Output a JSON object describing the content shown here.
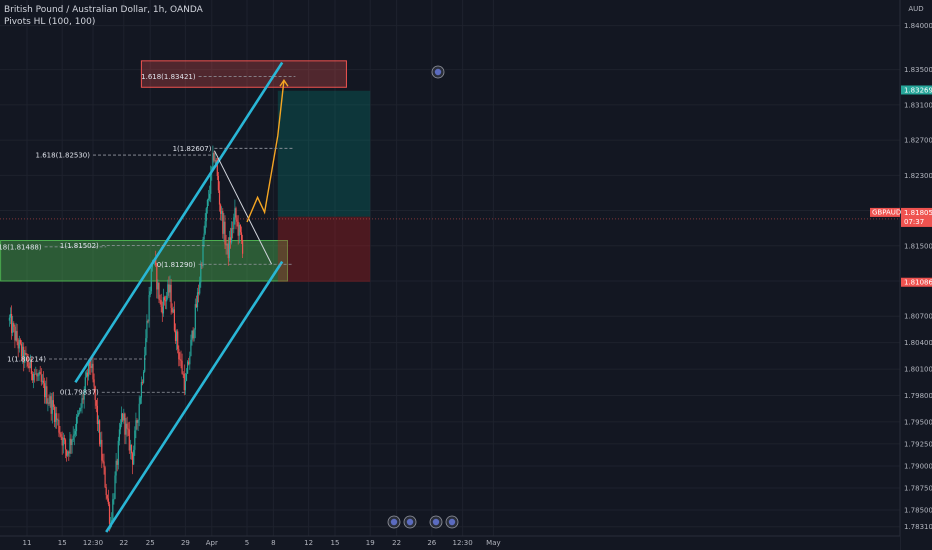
{
  "header": {
    "title": "British Pound / Australian Dollar, 1h, OANDA",
    "indicator": "Pivots HL (100, 100)",
    "currency": "AUD"
  },
  "colors": {
    "background": "#131722",
    "grid": "#1e222d",
    "up_candle": "#26a69a",
    "down_candle": "#ef5350",
    "channel": "#29b6d6",
    "fib_line": "#9598a1",
    "projection": "#f5a623",
    "demand_zone": "#4caf50",
    "supply_zone": "#ef5350",
    "target_zone": "#00897b",
    "stop_zone": "#b71c1c"
  },
  "chart_data": {
    "type": "candlestick",
    "title": "British Pound / Australian Dollar, 1h, OANDA",
    "symbol": "GBPAUD",
    "timeframe": "1h",
    "y_axis": {
      "ylim": [
        1.7825,
        1.842
      ],
      "ticks": [
        "1.84000",
        "1.83500",
        "1.83100",
        "1.82700",
        "1.82300",
        "1.81900",
        "1.81500",
        "1.81100",
        "1.80700",
        "1.80400",
        "1.80100",
        "1.79800",
        "1.79500",
        "1.79250",
        "1.79000",
        "1.78750",
        "1.78500",
        "1.78310"
      ],
      "tick_values": [
        1.84,
        1.835,
        1.831,
        1.827,
        1.823,
        1.819,
        1.815,
        1.811,
        1.807,
        1.804,
        1.801,
        1.798,
        1.795,
        1.7925,
        1.79,
        1.7875,
        1.785,
        1.7831
      ]
    },
    "x_axis": {
      "ticks": [
        "11",
        "15",
        "12:30",
        "22",
        "25",
        "29",
        "Apr",
        "5",
        "8",
        "12",
        "15",
        "19",
        "22",
        "26",
        "12:30",
        "May"
      ],
      "tick_days": [
        11,
        15,
        18.5,
        22,
        25,
        29,
        32,
        36,
        39,
        43,
        46,
        50,
        53,
        57,
        60.5,
        64
      ]
    },
    "price_labels": [
      {
        "text": "1.83269",
        "value": 1.83269,
        "color": "#26a69a"
      },
      {
        "text": "1.81830",
        "value": 1.8183,
        "color": "#434651"
      },
      {
        "text": "GBPAUD",
        "value": 1.81805,
        "color": "#ef5350"
      },
      {
        "text": "1.81805",
        "value": 1.81805,
        "color": "#ef5350"
      },
      {
        "text": "07:37",
        "value": 1.81805,
        "color": "#ef5350"
      },
      {
        "text": "1.81086",
        "value": 1.81086,
        "color": "#ef5350"
      }
    ],
    "candles": {
      "start_day": 9.0,
      "end_day": 35.5,
      "anchors": [
        [
          9.0,
          1.8065
        ],
        [
          10.5,
          1.8025
        ],
        [
          12.5,
          1.7995
        ],
        [
          14.0,
          1.7965
        ],
        [
          15.5,
          1.7915
        ],
        [
          17.0,
          1.796
        ],
        [
          18.2,
          1.802
        ],
        [
          19.5,
          1.791
        ],
        [
          20.5,
          1.7835
        ],
        [
          21.8,
          1.796
        ],
        [
          23.0,
          1.791
        ],
        [
          24.2,
          1.801
        ],
        [
          25.3,
          1.814
        ],
        [
          26.2,
          1.808
        ],
        [
          27.2,
          1.81
        ],
        [
          28.2,
          1.803
        ],
        [
          29.0,
          1.799
        ],
        [
          29.8,
          1.805
        ],
        [
          30.5,
          1.81
        ],
        [
          31.3,
          1.818
        ],
        [
          32.3,
          1.8258
        ],
        [
          33.0,
          1.819
        ],
        [
          33.8,
          1.814
        ],
        [
          34.6,
          1.8185
        ],
        [
          35.5,
          1.815
        ]
      ]
    },
    "channel_lines": [
      {
        "name": "upper",
        "points": [
          [
            16.5,
            1.7995
          ],
          [
            40.0,
            1.8358
          ]
        ]
      },
      {
        "name": "lower",
        "points": [
          [
            20.0,
            1.7825
          ],
          [
            40.0,
            1.8132
          ]
        ]
      }
    ],
    "projection_path": [
      [
        36.0,
        1.8177
      ],
      [
        37.2,
        1.8205
      ],
      [
        38.0,
        1.8188
      ],
      [
        39.5,
        1.8275
      ],
      [
        40.2,
        1.8338
      ]
    ],
    "diagonal_line": [
      [
        32.3,
        1.8258
      ],
      [
        38.8,
        1.8129
      ]
    ],
    "fibonacci_levels": [
      {
        "label": "1.618(1.83421)",
        "value": 1.83421,
        "x_start": 30.5,
        "x_end": 41.5
      },
      {
        "label": "1(1.82607)",
        "value": 1.82607,
        "x_start": 32.3,
        "x_end": 41.2
      },
      {
        "label": "1.618(1.82530)",
        "value": 1.8253,
        "x_start": 18.5,
        "x_end": 32.0
      },
      {
        "label": "1.618(1.81488)",
        "value": 1.81488,
        "x_start": 13.0,
        "x_end": 20.0
      },
      {
        "label": "1(1.81502)",
        "value": 1.81502,
        "x_start": 19.5,
        "x_end": 32.0
      },
      {
        "label": "0(1.81290)",
        "value": 1.8129,
        "x_start": 30.5,
        "x_end": 41.2
      },
      {
        "label": "1(1.80214)",
        "value": 1.80214,
        "x_start": 13.5,
        "x_end": 24.5
      },
      {
        "label": "0(1.79837)",
        "value": 1.79837,
        "x_start": 19.5,
        "x_end": 29.0
      }
    ],
    "zones": [
      {
        "name": "demand",
        "x_start": 8.0,
        "x_end": 40.6,
        "y_top": 1.8156,
        "y_bottom": 1.811
      },
      {
        "name": "supply",
        "x_start": 24.0,
        "x_end": 47.3,
        "y_top": 1.836,
        "y_bottom": 1.833
      },
      {
        "name": "target",
        "x_start": 39.5,
        "x_end": 50.0,
        "y_top": 1.8326,
        "y_bottom": 1.8183
      },
      {
        "name": "stop",
        "x_start": 39.5,
        "x_end": 50.0,
        "y_top": 1.8183,
        "y_bottom": 1.8109
      }
    ],
    "current_price": 1.81805
  }
}
